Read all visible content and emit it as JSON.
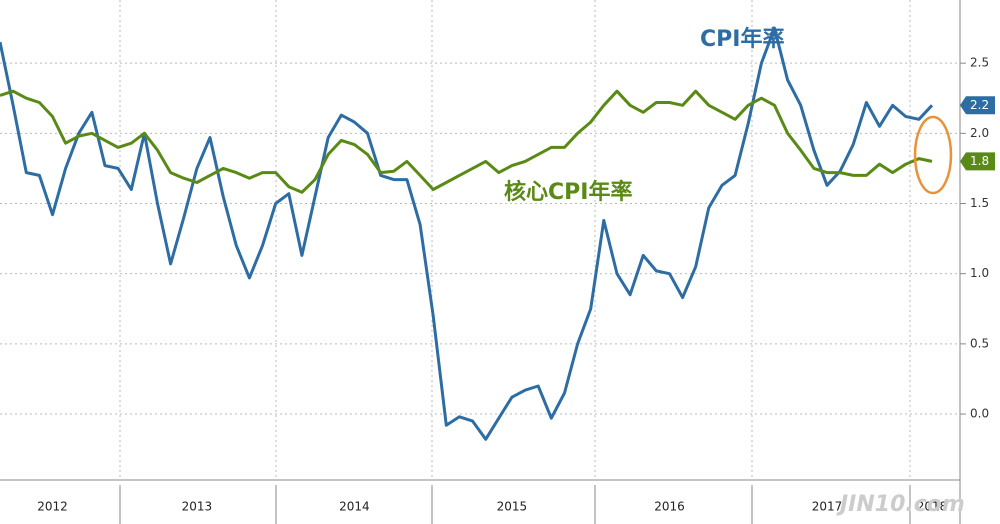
{
  "chart_data": {
    "type": "line",
    "annotations": [
      "CPI年率",
      "核心CPI年率"
    ],
    "watermark": "JIN10.com",
    "categories": [
      null,
      null,
      null,
      null,
      "2012",
      null,
      null,
      null,
      null,
      null,
      null,
      null,
      null,
      null,
      null,
      "2013",
      null,
      null,
      null,
      null,
      null,
      null,
      null,
      null,
      null,
      null,
      null,
      "2014",
      null,
      null,
      null,
      null,
      null,
      null,
      null,
      null,
      null,
      null,
      null,
      "2015",
      null,
      null,
      null,
      null,
      null,
      null,
      null,
      null,
      null,
      null,
      null,
      "2016",
      null,
      null,
      null,
      null,
      null,
      null,
      null,
      null,
      null,
      null,
      null,
      "2017",
      null,
      null,
      null,
      null,
      null,
      null,
      null,
      "2018"
    ],
    "series": [
      {
        "name": "CPI年率",
        "color": "#2e6da4",
        "values": [
          2.65,
          2.2,
          1.72,
          1.7,
          1.42,
          1.75,
          2.0,
          2.15,
          1.77,
          1.75,
          1.6,
          2.0,
          1.5,
          1.07,
          1.4,
          1.75,
          1.97,
          1.55,
          1.2,
          0.97,
          1.2,
          1.5,
          1.57,
          1.13,
          1.55,
          1.97,
          2.13,
          2.08,
          2.0,
          1.7,
          1.67,
          1.67,
          1.35,
          0.7,
          -0.08,
          -0.02,
          -0.05,
          -0.18,
          -0.03,
          0.12,
          0.17,
          0.2,
          -0.03,
          0.15,
          0.5,
          0.75,
          1.38,
          1.0,
          0.85,
          1.13,
          1.02,
          1.0,
          0.83,
          1.05,
          1.47,
          1.63,
          1.7,
          2.07,
          2.5,
          2.75,
          2.38,
          2.2,
          1.88,
          1.63,
          1.73,
          1.92,
          2.22,
          2.05,
          2.2,
          2.12,
          2.1,
          2.2
        ]
      },
      {
        "name": "核心CPI年率",
        "color": "#5a8a16",
        "values": [
          2.27,
          2.3,
          2.25,
          2.22,
          2.12,
          1.93,
          1.98,
          2.0,
          1.95,
          1.9,
          1.93,
          2.0,
          1.88,
          1.72,
          1.68,
          1.65,
          1.7,
          1.75,
          1.72,
          1.68,
          1.72,
          1.72,
          1.62,
          1.58,
          1.67,
          1.85,
          1.95,
          1.92,
          1.85,
          1.72,
          1.73,
          1.8,
          1.7,
          1.6,
          1.65,
          1.7,
          1.75,
          1.8,
          1.72,
          1.77,
          1.8,
          1.85,
          1.9,
          1.9,
          2.0,
          2.08,
          2.2,
          2.3,
          2.2,
          2.15,
          2.22,
          2.22,
          2.2,
          2.3,
          2.2,
          2.15,
          2.1,
          2.2,
          2.25,
          2.2,
          2.0,
          1.88,
          1.75,
          1.72,
          1.72,
          1.7,
          1.7,
          1.78,
          1.72,
          1.78,
          1.82,
          1.8
        ]
      }
    ],
    "ylim": [
      -0.47,
      2.95
    ],
    "yticks": [
      {
        "value": 0,
        "label": "0.0"
      },
      0.5,
      {
        "value": 1,
        "label": "1.0"
      },
      1.5,
      {
        "value": 2,
        "label": "2.0"
      },
      2.5
    ],
    "grid": true
  }
}
